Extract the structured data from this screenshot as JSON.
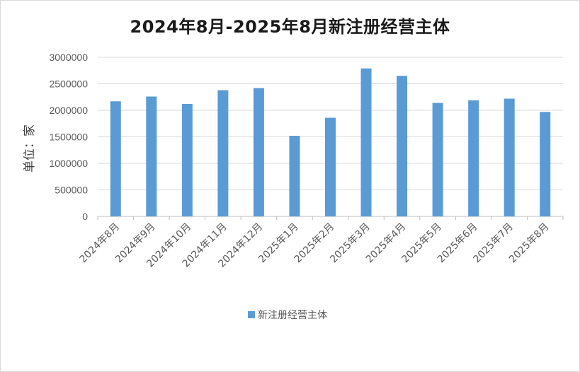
{
  "chart_data": {
    "type": "bar",
    "title": "2024年8月-2025年8月新注册经营主体",
    "ylabel": "单位：家",
    "xlabel": "",
    "ylim": [
      0,
      3000000
    ],
    "yticks": [
      "0",
      "500000",
      "1000000",
      "1500000",
      "2000000",
      "2500000",
      "3000000"
    ],
    "categories": [
      "2024年8月",
      "2024年9月",
      "2024年10月",
      "2024年11月",
      "2024年12月",
      "2025年1月",
      "2025年2月",
      "2025年3月",
      "2025年4月",
      "2025年5月",
      "2025年6月",
      "2025年7月",
      "2025年8月"
    ],
    "series": [
      {
        "name": "新注册经营主体",
        "color": "#5b9bd5",
        "values": [
          2170000,
          2260000,
          2120000,
          2380000,
          2420000,
          1520000,
          1860000,
          2790000,
          2650000,
          2140000,
          2190000,
          2220000,
          1970000
        ]
      }
    ],
    "grid": true,
    "legend": "bottom"
  }
}
